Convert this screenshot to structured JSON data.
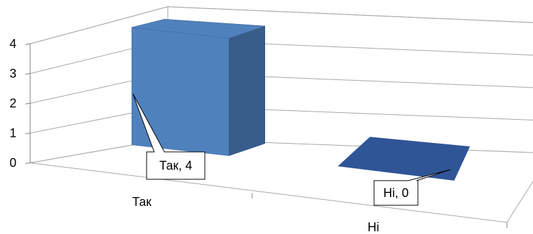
{
  "chart_data": {
    "type": "bar",
    "style": "3d-column",
    "categories": [
      "Так",
      "Ні"
    ],
    "values": [
      4,
      0
    ],
    "data_labels": [
      "Так, 4",
      "Ні, 0"
    ],
    "yticks": [
      "0",
      "1",
      "2",
      "3",
      "4"
    ],
    "ylim": [
      0,
      4
    ],
    "grid": true,
    "colors": {
      "bar_front": "#4f81bd",
      "bar_side": "#385d8a",
      "bar_top": "#2f5597",
      "grid": "#a6a6a6",
      "axis": "#7f7f7f"
    }
  }
}
